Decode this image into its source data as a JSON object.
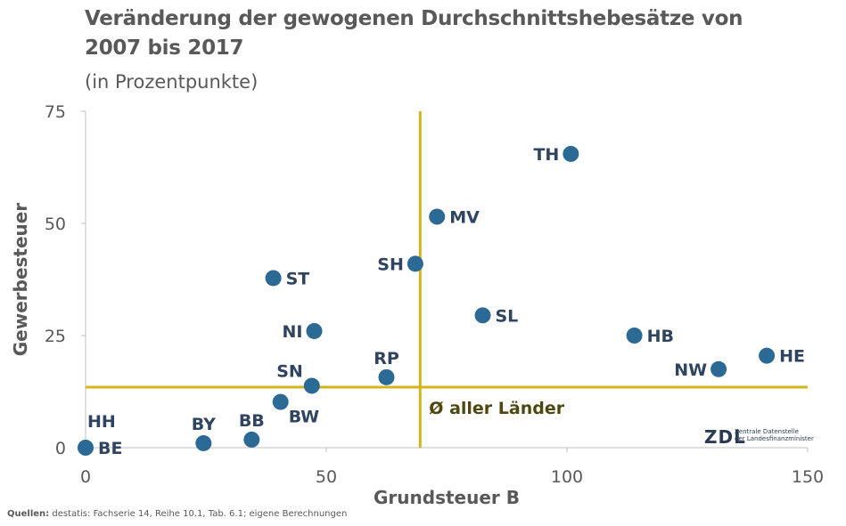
{
  "chart_data": {
    "type": "scatter",
    "title_line1": "Veränderung der gewogenen Durchschnittshebesätze von",
    "title_line2": "2007 bis 2017",
    "subtitle": "(in Prozentpunkte)",
    "xlabel": "Grundsteuer B",
    "ylabel": "Gewerbesteuer",
    "xlim": [
      0,
      150
    ],
    "ylim": [
      0,
      75
    ],
    "xticks": [
      0,
      50,
      100,
      150
    ],
    "yticks": [
      0,
      25,
      50,
      75
    ],
    "grid": false,
    "marker_color": "#2B6A94",
    "reference_line_color": "#D4B41C",
    "average": {
      "x": 69.5,
      "y": 13.5,
      "label": "Ø aller Länder"
    },
    "points": [
      {
        "label": "TH",
        "x": 100.8,
        "y": 65.5,
        "label_pos": "left"
      },
      {
        "label": "MV",
        "x": 73.0,
        "y": 51.5,
        "label_pos": "right"
      },
      {
        "label": "SH",
        "x": 68.5,
        "y": 41.0,
        "label_pos": "left"
      },
      {
        "label": "ST",
        "x": 39.0,
        "y": 37.8,
        "label_pos": "right"
      },
      {
        "label": "SL",
        "x": 82.5,
        "y": 29.5,
        "label_pos": "right"
      },
      {
        "label": "NI",
        "x": 47.5,
        "y": 26.0,
        "label_pos": "left"
      },
      {
        "label": "HB",
        "x": 114.0,
        "y": 25.0,
        "label_pos": "right"
      },
      {
        "label": "HE",
        "x": 141.5,
        "y": 20.5,
        "label_pos": "right"
      },
      {
        "label": "NW",
        "x": 131.5,
        "y": 17.5,
        "label_pos": "left"
      },
      {
        "label": "RP",
        "x": 62.5,
        "y": 15.7,
        "label_pos": "above"
      },
      {
        "label": "SN",
        "x": 47.0,
        "y": 13.8,
        "label_pos": "aboveleft"
      },
      {
        "label": "BW",
        "x": 40.5,
        "y": 10.2,
        "label_pos": "belowright"
      },
      {
        "label": "BB",
        "x": 34.5,
        "y": 1.8,
        "label_pos": "above"
      },
      {
        "label": "BY",
        "x": 24.5,
        "y": 1.0,
        "label_pos": "above"
      },
      {
        "label": "HH",
        "x": 0.0,
        "y": 0.0,
        "label_pos": "aboveright"
      },
      {
        "label": "BE",
        "x": 0.0,
        "y": 0.0,
        "label_pos": "right"
      }
    ]
  },
  "source": {
    "prefix": "Quellen:",
    "text": " destatis: Fachserie 14, Reihe 10.1, Tab. 6.1; eigene Berechnungen"
  },
  "logo": {
    "mark": "ZDL",
    "line1": "Zentrale Datenstelle",
    "line2": "der Landesfinanzminister"
  }
}
